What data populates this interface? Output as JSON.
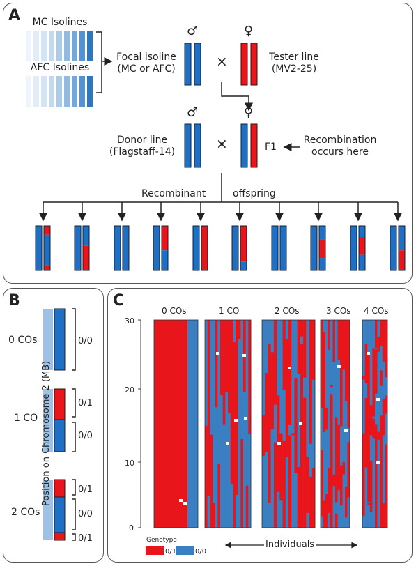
{
  "panelA": {
    "label": "A",
    "mc_isolines": "MC Isolines",
    "afc_isolines": "AFC Isolines",
    "focal_line1": "Focal isoline",
    "focal_line2": "(MC or AFC)",
    "cross": "×",
    "tester_line1": "Tester line",
    "tester_line2": "(MV2-25)",
    "male": "♂",
    "female": "♀",
    "donor_line1": "Donor line",
    "donor_line2": "(Flagstaff-14)",
    "f1": "F1",
    "recomb1": "Recombination",
    "recomb2": "occurs here",
    "recombinant": "Recombinant",
    "offspring": "offspring"
  },
  "panelB": {
    "label": "B",
    "co0": "0 COs",
    "co1": "1 CO",
    "co2": "2 COs",
    "g00": "0/0",
    "g01": "0/1",
    "g00b": "0/0",
    "g01b": "0/1",
    "g00c": "0/0",
    "g01c": "0/1",
    "g01d": "0/1"
  },
  "panelC": {
    "label": "C",
    "groups": [
      "0 COs",
      "1 CO",
      "2 COs",
      "3 COs",
      "4 COs"
    ],
    "ylabel": "Position on Chromosome 2 (MB)",
    "yticks": [
      "0",
      "10",
      "20",
      "30"
    ],
    "xlabel": "Individuals",
    "legend_title": "Genotype",
    "legend_01": "0/1",
    "legend_00": "0/0",
    "colors": {
      "red": "#e8151b",
      "blue": "#3a7fc1",
      "light": "#9fc1e3"
    }
  }
}
